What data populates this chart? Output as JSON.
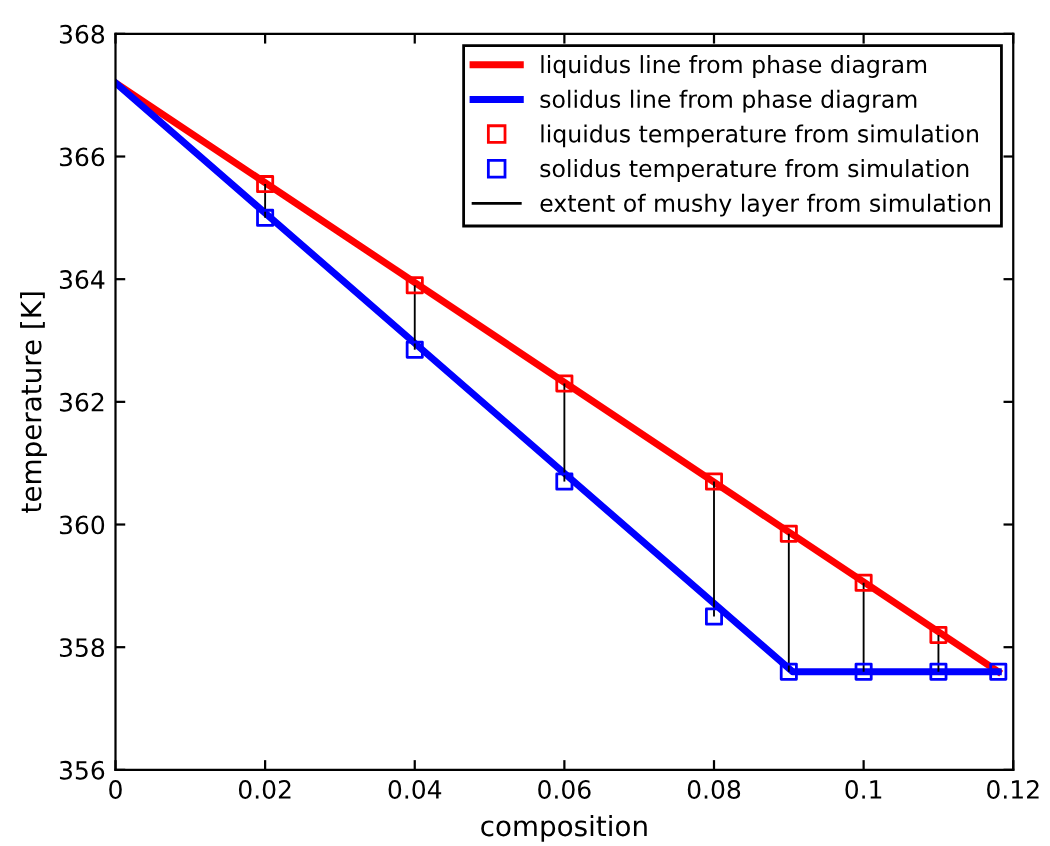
{
  "chart_data": {
    "type": "line",
    "xlabel": "composition",
    "ylabel": "temperature [K]",
    "xlim": [
      0,
      0.12
    ],
    "ylim": [
      356,
      368
    ],
    "xticks": [
      0,
      0.02,
      0.04,
      0.06,
      0.08,
      0.1,
      0.12
    ],
    "yticks": [
      356,
      358,
      360,
      362,
      364,
      366,
      368
    ],
    "grid": false,
    "legend": "top right",
    "series": [
      {
        "name": "liquidus line from phase diagram",
        "color": "#ff0000",
        "marker": "none",
        "x": [
          0,
          0.118
        ],
        "values": [
          367.2,
          357.6
        ]
      },
      {
        "name": "solidus line from phase diagram",
        "type": "line",
        "color": "#0000ff",
        "marker": "none",
        "x": [
          0,
          0.0905,
          0.118
        ],
        "values": [
          367.2,
          357.6,
          357.6
        ]
      },
      {
        "name": "liquidus temperature from simulation",
        "type": "scatter",
        "color": "#ff0000",
        "marker": "square",
        "x": [
          0.02,
          0.04,
          0.06,
          0.08,
          0.09,
          0.1,
          0.11
        ],
        "values": [
          365.55,
          363.9,
          362.3,
          360.7,
          359.85,
          359.05,
          358.2
        ]
      },
      {
        "name": "solidus temperature from simulation",
        "type": "scatter",
        "color": "#0000ff",
        "marker": "square",
        "x": [
          0.02,
          0.04,
          0.06,
          0.08,
          0.09,
          0.1,
          0.11,
          0.118
        ],
        "values": [
          365.0,
          362.85,
          360.7,
          358.5,
          357.6,
          357.6,
          357.6,
          357.6
        ]
      },
      {
        "name": "extent of mushy layer from simulation",
        "type": "bar",
        "color": "#000000",
        "x": [
          0.02,
          0.04,
          0.06,
          0.08,
          0.09,
          0.1,
          0.11
        ],
        "base": [
          365.0,
          362.85,
          360.7,
          358.5,
          357.6,
          357.6,
          357.6
        ],
        "values": [
          0.55,
          1.05,
          1.6,
          2.2,
          2.25,
          1.45,
          0.6
        ]
      }
    ]
  }
}
